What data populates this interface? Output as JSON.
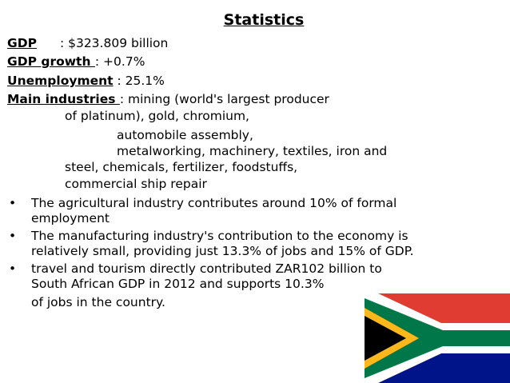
{
  "title": "Statistics",
  "stats": {
    "gdp_label": "GDP",
    "gdp_value": ": $323.809 billion",
    "growth_label": "GDP growth ",
    "growth_value": ": +0.7%",
    "unemp_label": "Unemployment",
    "unemp_value": " : 25.1%",
    "industries_label": "Main industries ",
    "industries_line1": ": mining (world's largest producer",
    "industries_line2": "of platinum), gold, chromium,",
    "industries_line3": "automobile assembly,",
    "industries_line4": "metalworking, machinery, textiles, iron and",
    "industries_line5": "steel, chemicals, fertilizer, foodstuffs,",
    "industries_line6": "commercial ship repair"
  },
  "bullets": {
    "b1_line1": "The agricultural industry contributes around 10% of formal",
    "b1_line2": "employment",
    "b2_line1": "The manufacturing industry's contribution to the economy is",
    "b2_line2": "relatively small, providing just 13.3% of jobs and 15% of GDP.",
    "b3_line1": "travel and tourism directly contributed ZAR102 billion to",
    "b3_line2": "South African GDP in 2012 and supports 10.3%",
    "b3_line3": "of jobs in the country."
  },
  "bullet_symbol": "•",
  "flag_icon": "south-africa-flag-icon",
  "colors": {
    "red": "#E03C31",
    "blue": "#001489",
    "green": "#007749",
    "gold": "#FFB81C",
    "black": "#000000",
    "white": "#FFFFFF"
  }
}
